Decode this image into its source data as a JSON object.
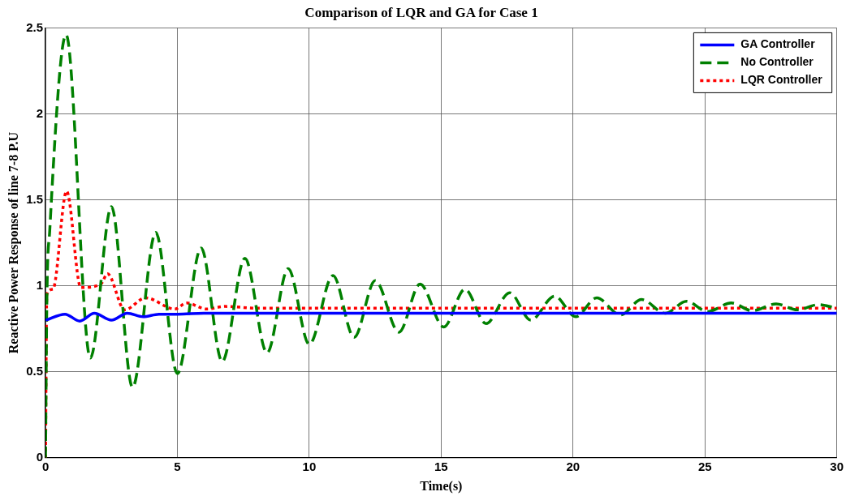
{
  "chart_data": {
    "type": "line",
    "title": "Comparison of LQR and GA for Case 1",
    "xlabel": "Time(s)",
    "ylabel": "Reactive Power Response of line 7-8 P.U",
    "xlim": [
      0,
      30
    ],
    "xticks": [
      0,
      5,
      10,
      15,
      20,
      25,
      30
    ],
    "ylim": [
      0,
      2.5
    ],
    "yticks": [
      0,
      0.5,
      1,
      1.5,
      2,
      2.5
    ],
    "grid": true,
    "legend": "top right",
    "marker": "none",
    "series": [
      {
        "name": "GA Controller",
        "color": "#0000ff",
        "line_style": "solid",
        "x": [
          0,
          0.74,
          1.3,
          1.85,
          2.5,
          3.1,
          3.7,
          4.3,
          5,
          6,
          8,
          10,
          15,
          20,
          25,
          30
        ],
        "values": [
          0.8,
          0.835,
          0.795,
          0.84,
          0.8,
          0.84,
          0.82,
          0.835,
          0.835,
          0.84,
          0.84,
          0.84,
          0.84,
          0.84,
          0.84,
          0.84
        ]
      },
      {
        "name": "No Controller",
        "color": "#008000",
        "line_style": "dashed",
        "x": [
          0,
          0.05,
          0.16,
          0.78,
          1.7,
          2.5,
          3.3,
          4.18,
          5,
          5.9,
          6.7,
          7.56,
          8.4,
          9.2,
          10,
          10.9,
          11.7,
          12.5,
          13.4,
          14.2,
          15.1,
          15.9,
          16.7,
          17.6,
          18.4,
          19.3,
          20.1,
          20.9,
          21.8,
          22.6,
          23.5,
          24.3,
          25.1,
          26,
          26.8,
          27.7,
          28.5,
          29.3,
          30
        ],
        "values": [
          0,
          0.9,
          1.32,
          2.46,
          0.58,
          1.46,
          0.41,
          1.31,
          0.49,
          1.22,
          0.56,
          1.16,
          0.61,
          1.1,
          0.66,
          1.06,
          0.7,
          1.03,
          0.73,
          1.01,
          0.76,
          0.98,
          0.78,
          0.96,
          0.8,
          0.94,
          0.82,
          0.93,
          0.83,
          0.92,
          0.84,
          0.91,
          0.85,
          0.9,
          0.855,
          0.895,
          0.86,
          0.89,
          0.87
        ]
      },
      {
        "name": "LQR Controller",
        "color": "#ff0000",
        "line_style": "dotted",
        "x": [
          0,
          0.05,
          0.28,
          0.8,
          1.34,
          2.1,
          2.35,
          3,
          3.8,
          4.9,
          5.35,
          6.1,
          6.8,
          8,
          10,
          15,
          20,
          25,
          30
        ],
        "values": [
          0,
          0.95,
          0.98,
          1.55,
          0.99,
          1.01,
          1.07,
          0.86,
          0.93,
          0.865,
          0.9,
          0.865,
          0.88,
          0.87,
          0.87,
          0.87,
          0.87,
          0.87,
          0.87
        ]
      }
    ]
  }
}
